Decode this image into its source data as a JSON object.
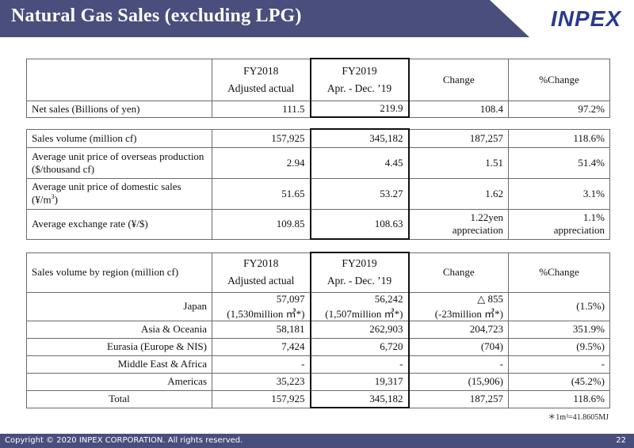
{
  "slide": {
    "title": "Natural Gas Sales (excluding LPG)",
    "logo": "INPEX",
    "note": "＊1m³=41.8605MJ",
    "copyright": "Copyright © 2020 INPEX CORPORATION. All rights reserved.",
    "page": "22",
    "colors": {
      "title_bar": "#4a4e7c",
      "logo": "#2a3a8f",
      "footer": "#4a4e7c"
    }
  },
  "header": {
    "col1_line1": "FY2018",
    "col1_line2": "Adjusted actual",
    "col2_line1": "FY2019",
    "col2_line2": "Apr. - Dec. ’19",
    "change": "Change",
    "pct_change": "%Change"
  },
  "net_sales": {
    "label": "Net sales (Billions of yen)",
    "fy2018": "111.5",
    "fy2019": "219.9",
    "change": "108.4",
    "pct": "97.2%"
  },
  "metrics": [
    {
      "label": "Sales volume  (million cf)",
      "fy2018": "157,925",
      "fy2019": "345,182",
      "change": "187,257",
      "pct": "118.6%"
    },
    {
      "label": "Average unit price of overseas production ($/thousand cf)",
      "fy2018": "2.94",
      "fy2019": "4.45",
      "change": "1.51",
      "pct": "51.4%"
    },
    {
      "label": "Average unit price of domestic sales (¥/m",
      "label_sup": "3",
      "label_end": ")",
      "fy2018": "51.65",
      "fy2019": "53.27",
      "change": "1.62",
      "pct": "3.1%"
    },
    {
      "label": "Average exchange rate (¥/$)",
      "fy2018": "109.85",
      "fy2019": "108.63",
      "change": "1.22yen",
      "change2": "appreciation",
      "pct": "1.1%",
      "pct2": "appreciation"
    }
  ],
  "region": {
    "header_label": "Sales volume by region (million cf)",
    "rows": [
      {
        "label": "Japan",
        "fy2018": "57,097",
        "fy2018_sub": "(1,530million ㎥*)",
        "fy2019": "56,242",
        "fy2019_sub": "(1,507million ㎥*)",
        "change": "△ 855",
        "change_sub": "(-23million ㎥*)",
        "pct": "(1.5%)"
      },
      {
        "label": "Asia & Oceania",
        "fy2018": "58,181",
        "fy2019": "262,903",
        "change": "204,723",
        "pct": "351.9%"
      },
      {
        "label": "Eurasia (Europe & NIS)",
        "fy2018": "7,424",
        "fy2019": "6,720",
        "change": "(704)",
        "pct": "(9.5%)"
      },
      {
        "label": "Middle East & Africa",
        "fy2018": "-",
        "fy2019": "-",
        "change": "-",
        "pct": "-"
      },
      {
        "label": "Americas",
        "fy2018": "35,223",
        "fy2019": "19,317",
        "change": "(15,906)",
        "pct": "(45.2%)"
      },
      {
        "label": "Total",
        "fy2018": "157,925",
        "fy2019": "345,182",
        "change": "187,257",
        "pct": "118.6%"
      }
    ]
  }
}
